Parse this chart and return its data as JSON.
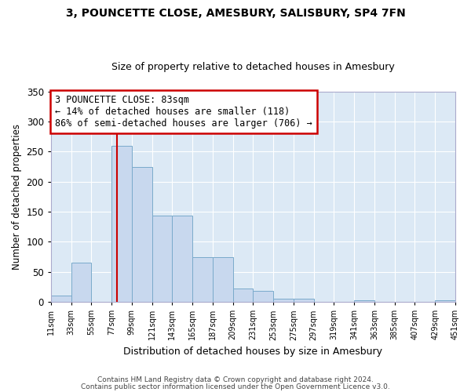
{
  "title": "3, POUNCETTE CLOSE, AMESBURY, SALISBURY, SP4 7FN",
  "subtitle": "Size of property relative to detached houses in Amesbury",
  "xlabel": "Distribution of detached houses by size in Amesbury",
  "ylabel": "Number of detached properties",
  "bar_color": "#c8d8ee",
  "bar_edge_color": "#7aaacb",
  "fig_background_color": "#ffffff",
  "axes_background_color": "#dce9f5",
  "grid_color": "#ffffff",
  "annotation_box_color": "#cc0000",
  "vline_color": "#cc0000",
  "vline_x": 83,
  "annotation_title": "3 POUNCETTE CLOSE: 83sqm",
  "annotation_line1": "← 14% of detached houses are smaller (118)",
  "annotation_line2": "86% of semi-detached houses are larger (706) →",
  "footer1": "Contains HM Land Registry data © Crown copyright and database right 2024.",
  "footer2": "Contains public sector information licensed under the Open Government Licence v3.0.",
  "bins": [
    11,
    33,
    55,
    77,
    99,
    121,
    143,
    165,
    187,
    209,
    231,
    253,
    275,
    297,
    319,
    341,
    363,
    385,
    407,
    429,
    451
  ],
  "bin_labels": [
    "11sqm",
    "33sqm",
    "55sqm",
    "77sqm",
    "99sqm",
    "121sqm",
    "143sqm",
    "165sqm",
    "187sqm",
    "209sqm",
    "231sqm",
    "253sqm",
    "275sqm",
    "297sqm",
    "319sqm",
    "341sqm",
    "363sqm",
    "385sqm",
    "407sqm",
    "429sqm",
    "451sqm"
  ],
  "counts": [
    10,
    65,
    0,
    260,
    225,
    143,
    143,
    75,
    75,
    22,
    19,
    5,
    5,
    0,
    0,
    3,
    0,
    0,
    0,
    3
  ],
  "ylim": [
    0,
    350
  ],
  "yticks": [
    0,
    50,
    100,
    150,
    200,
    250,
    300,
    350
  ]
}
